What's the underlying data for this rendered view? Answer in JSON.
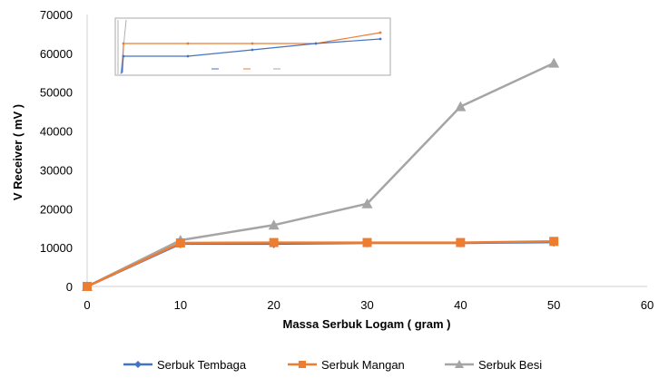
{
  "chart_data": {
    "type": "line",
    "xlabel": "Massa Serbuk Logam ( gram )",
    "ylabel": "V Receiver ( mV )",
    "x_ticks": [
      0,
      10,
      20,
      30,
      40,
      50,
      60
    ],
    "y_ticks": [
      0,
      10000,
      20000,
      30000,
      40000,
      50000,
      60000,
      70000
    ],
    "xlim": [
      0,
      60
    ],
    "ylim": [
      0,
      70000
    ],
    "grid": false,
    "legend_position": "bottom",
    "x": [
      0,
      10,
      20,
      30,
      40,
      50
    ],
    "series": [
      {
        "name": "Serbuk Tembaga",
        "color": "#4472C4",
        "marker": "diamond",
        "values": [
          0,
          11000,
          11000,
          11200,
          11200,
          11400
        ]
      },
      {
        "name": "Serbuk Mangan",
        "color": "#ED7D31",
        "marker": "square",
        "values": [
          0,
          11200,
          11300,
          11300,
          11300,
          11600
        ]
      },
      {
        "name": "Serbuk Besi",
        "color": "#A5A5A5",
        "marker": "triangle",
        "values": [
          0,
          11900,
          15800,
          21300,
          46300,
          57500
        ]
      }
    ]
  }
}
